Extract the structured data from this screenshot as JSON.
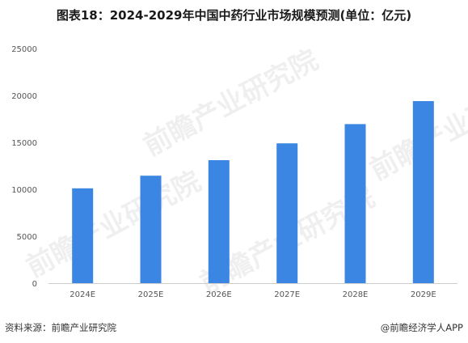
{
  "header": {
    "title": "图表18：2024-2029年中国中药行业市场规模预测(单位：亿元)"
  },
  "footer": {
    "source": "资料来源：前瞻产业研究院",
    "brand": "@前瞻经济学人APP"
  },
  "watermark": {
    "text": "前瞻产业研究院"
  },
  "colors": {
    "bar": "#3b86e3",
    "axis": "#cccccc"
  },
  "chart_data": {
    "type": "bar",
    "categories": [
      "2024E",
      "2025E",
      "2026E",
      "2027E",
      "2028E",
      "2029E"
    ],
    "values": [
      10100,
      11450,
      13100,
      14900,
      16950,
      19400
    ],
    "ylim": [
      0,
      25000
    ],
    "yticks": [
      0,
      5000,
      10000,
      15000,
      20000,
      25000
    ],
    "grid": false,
    "legend": "none"
  }
}
